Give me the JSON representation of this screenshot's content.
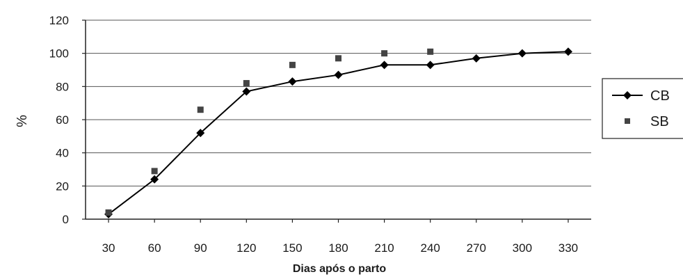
{
  "chart_data": {
    "type": "line",
    "x": [
      30,
      60,
      90,
      120,
      150,
      180,
      210,
      240,
      270,
      300,
      330
    ],
    "xlabel": "Dias após o parto",
    "ylabel": "%",
    "ylim": [
      0,
      120
    ],
    "yticks": [
      0,
      20,
      40,
      60,
      80,
      100,
      120
    ],
    "grid": true,
    "legend_position": "right",
    "series": [
      {
        "name": "CB",
        "style": "line-diamond",
        "color": "#000000",
        "values": [
          3,
          24,
          52,
          77,
          83,
          87,
          93,
          93,
          97,
          100,
          101
        ]
      },
      {
        "name": "SB",
        "style": "square-marker",
        "color": "#444444",
        "values": [
          4,
          29,
          66,
          82,
          93,
          97,
          100,
          101,
          null,
          null,
          null
        ]
      }
    ]
  }
}
